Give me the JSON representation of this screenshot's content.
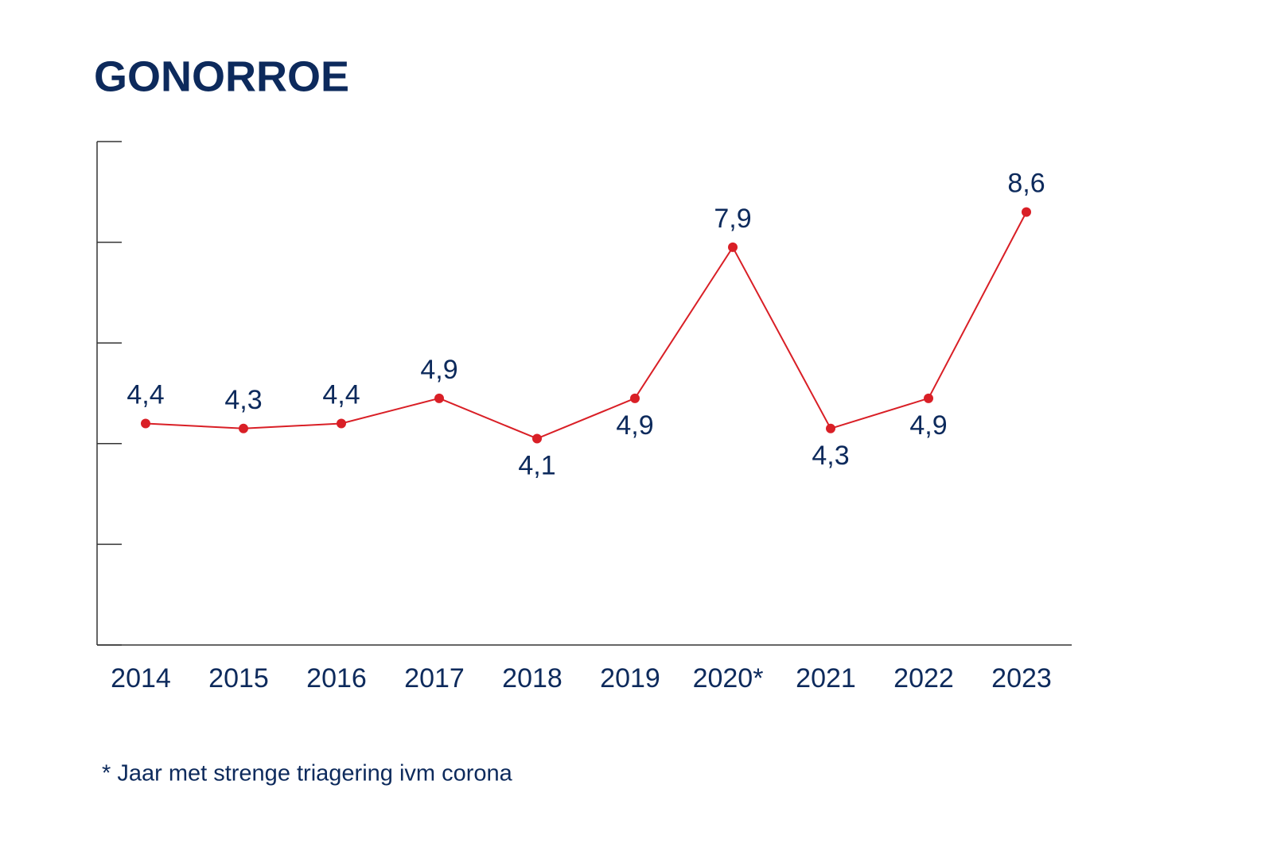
{
  "chart_data": {
    "type": "line",
    "title": "GONORROE",
    "categories": [
      "2014",
      "2015",
      "2016",
      "2017",
      "2018",
      "2019",
      "2020*",
      "2021",
      "2022",
      "2023"
    ],
    "series": [
      {
        "name": "Gonorroe",
        "color": "#d91f26",
        "values": [
          4.4,
          4.3,
          4.4,
          4.9,
          4.1,
          4.9,
          7.9,
          4.3,
          4.9,
          8.6
        ],
        "value_labels": [
          "4,4",
          "4,3",
          "4,4",
          "4,9",
          "4,1",
          "4,9",
          "7,9",
          "4,3",
          "4,9",
          "8,6"
        ]
      }
    ],
    "ylim": [
      0,
      10
    ],
    "yticks": [
      0,
      2,
      4,
      6,
      8,
      10
    ],
    "grid": false,
    "footnote": "* Jaar met strenge triagering ivm corona"
  }
}
